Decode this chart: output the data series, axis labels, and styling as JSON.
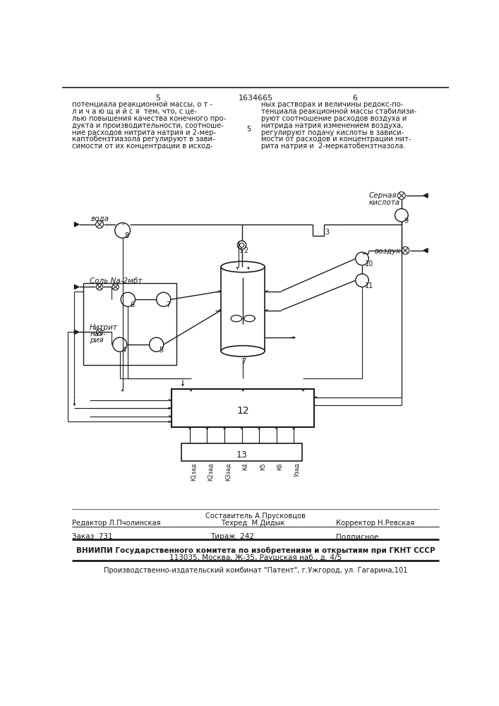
{
  "page_width": 7.07,
  "page_height": 10.0,
  "bg_color": "#ffffff",
  "text_color": "#1a1a1a",
  "top_text_left": [
    "потенциала реакционной массы, о т -",
    "л и ч а ю щ и й с я  тем, что, с це-",
    "лью повышения качества конечного про-",
    "дукта и производительности, соотноше-",
    "ние расходов нитрита натрия и 2-мер-",
    "каптобензтиазола регулируют в зави-",
    "симости от их концентрации в исход-"
  ],
  "top_text_right": [
    "ных растворах и величины редокс-по-",
    "тенциала реакционной массы стабилизи-",
    "руют соотношение расходов воздуха и",
    "нитрида натрия изменением воздуха,",
    "регулируют подачу кислоты в зависи-",
    "мости от расходов и концентрации нит-",
    "рита натрия и  2-меркатобензтназола."
  ],
  "page_num_left": "5",
  "page_num_center": "1634665",
  "page_num_right": "6",
  "bottom_editor": "Редактор Л.Пчолинская",
  "bottom_composer": "Составитель А.Прусковцов",
  "bottom_techred": "Техред  М.Дидык",
  "bottom_corrector": "Корректор Н.Ревская",
  "bottom_order": "Заказ  731",
  "bottom_circulation": "Тираж  242",
  "bottom_subscription": "Подписное",
  "bottom_vniipи": "ВНИИПИ Государственного комитета по изобретениям и открытиям при ГКНТ СССР",
  "bottom_address": "113035, Москва, Ж-35, Раушская наб., д. 4/5",
  "bottom_publisher": "Производственно-издательский комбинат \"Патент\", г.Ужгород, ул. Гагарина,101",
  "labels_13": [
    "К1зад",
    "К2зад",
    "К3зад",
    "К4",
    "К5",
    "К6",
    "Узад"
  ]
}
